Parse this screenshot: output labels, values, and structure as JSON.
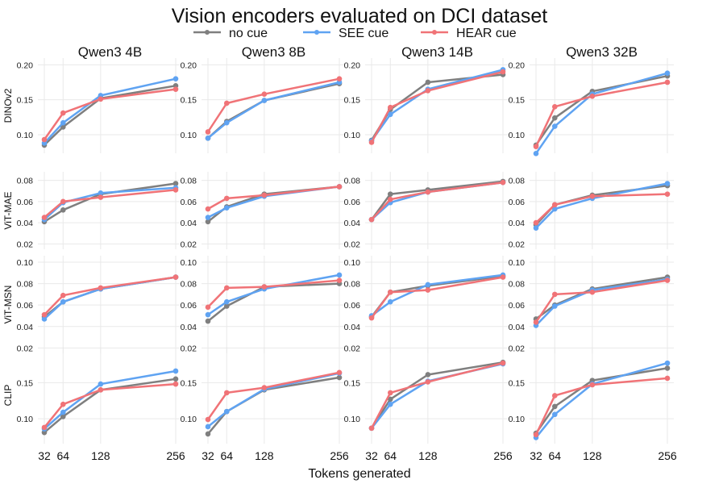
{
  "chart_data": {
    "type": "line",
    "title": "Vision encoders evaluated on DCI dataset",
    "xlabel": "Tokens generated",
    "x": [
      32,
      64,
      128,
      256
    ],
    "x_tick_labels": [
      "32",
      "64",
      "128",
      "256"
    ],
    "legend": [
      {
        "name": "no cue",
        "color": "#7f7f7f"
      },
      {
        "name": "SEE cue",
        "color": "#5fa3f2"
      },
      {
        "name": "HEAR cue",
        "color": "#f07377"
      }
    ],
    "columns": [
      "Qwen3 4B",
      "Qwen3 8B",
      "Qwen3 14B",
      "Qwen3 32B"
    ],
    "rows": [
      {
        "label": "DINOv2",
        "ylim": [
          0.078,
          0.205
        ],
        "yticks": [
          0.1,
          0.15,
          0.2
        ],
        "ytick_labels": [
          "0.10",
          "0.15",
          "0.20"
        ]
      },
      {
        "label": "ViT-MAE",
        "ylim": [
          0.018,
          0.085
        ],
        "yticks": [
          0.02,
          0.04,
          0.06,
          0.08
        ],
        "ytick_labels": [
          "0.02",
          "0.04",
          "0.06",
          "0.08"
        ]
      },
      {
        "label": "ViT-MSN",
        "ylim": [
          0.018,
          0.103
        ],
        "yticks": [
          0.02,
          0.04,
          0.06,
          0.08,
          0.1
        ],
        "ytick_labels": [
          "0.02",
          "0.04",
          "0.06",
          "0.08",
          "0.10"
        ]
      },
      {
        "label": "CLIP",
        "ylim": [
          0.07,
          0.195
        ],
        "yticks": [
          0.1,
          0.15
        ],
        "ytick_labels": [
          "0.10",
          "0.15"
        ]
      }
    ],
    "panels": [
      [
        {
          "series": [
            {
              "name": "no cue",
              "values": [
                0.085,
                0.111,
                0.152,
                0.17
              ]
            },
            {
              "name": "SEE cue",
              "values": [
                0.088,
                0.117,
                0.156,
                0.18
              ]
            },
            {
              "name": "HEAR cue",
              "values": [
                0.093,
                0.131,
                0.151,
                0.165
              ]
            }
          ]
        },
        {
          "series": [
            {
              "name": "no cue",
              "values": [
                0.095,
                0.119,
                0.149,
                0.173
              ]
            },
            {
              "name": "SEE cue",
              "values": [
                0.095,
                0.117,
                0.149,
                0.175
              ]
            },
            {
              "name": "HEAR cue",
              "values": [
                0.104,
                0.145,
                0.158,
                0.18
              ]
            }
          ]
        },
        {
          "series": [
            {
              "name": "no cue",
              "values": [
                0.092,
                0.136,
                0.175,
                0.186
              ]
            },
            {
              "name": "SEE cue",
              "values": [
                0.091,
                0.129,
                0.165,
                0.193
              ]
            },
            {
              "name": "HEAR cue",
              "values": [
                0.089,
                0.139,
                0.163,
                0.19
              ]
            }
          ]
        },
        {
          "series": [
            {
              "name": "no cue",
              "values": [
                0.085,
                0.124,
                0.162,
                0.184
              ]
            },
            {
              "name": "SEE cue",
              "values": [
                0.073,
                0.112,
                0.158,
                0.188
              ]
            },
            {
              "name": "HEAR cue",
              "values": [
                0.083,
                0.14,
                0.155,
                0.175
              ]
            }
          ]
        }
      ],
      [
        {
          "series": [
            {
              "name": "no cue",
              "values": [
                0.041,
                0.052,
                0.067,
                0.077
              ]
            },
            {
              "name": "SEE cue",
              "values": [
                0.043,
                0.059,
                0.068,
                0.073
              ]
            },
            {
              "name": "HEAR cue",
              "values": [
                0.045,
                0.06,
                0.064,
                0.071
              ]
            }
          ]
        },
        {
          "series": [
            {
              "name": "no cue",
              "values": [
                0.041,
                0.055,
                0.067,
                0.074
              ]
            },
            {
              "name": "SEE cue",
              "values": [
                0.045,
                0.054,
                0.065,
                0.074
              ]
            },
            {
              "name": "HEAR cue",
              "values": [
                0.053,
                0.063,
                0.066,
                0.074
              ]
            }
          ]
        },
        {
          "series": [
            {
              "name": "no cue",
              "values": [
                0.043,
                0.067,
                0.071,
                0.079
              ]
            },
            {
              "name": "SEE cue",
              "values": [
                0.043,
                0.059,
                0.069,
                0.078
              ]
            },
            {
              "name": "HEAR cue",
              "values": [
                0.043,
                0.062,
                0.069,
                0.078
              ]
            }
          ]
        },
        {
          "series": [
            {
              "name": "no cue",
              "values": [
                0.038,
                0.057,
                0.066,
                0.075
              ]
            },
            {
              "name": "SEE cue",
              "values": [
                0.035,
                0.053,
                0.063,
                0.077
              ]
            },
            {
              "name": "HEAR cue",
              "values": [
                0.04,
                0.057,
                0.065,
                0.067
              ]
            }
          ]
        }
      ],
      [
        {
          "series": [
            {
              "name": "no cue",
              "values": [
                0.049,
                0.063,
                0.075,
                0.086
              ]
            },
            {
              "name": "SEE cue",
              "values": [
                0.047,
                0.063,
                0.075,
                0.086
              ]
            },
            {
              "name": "HEAR cue",
              "values": [
                0.051,
                0.069,
                0.076,
                0.086
              ]
            }
          ]
        },
        {
          "series": [
            {
              "name": "no cue",
              "values": [
                0.045,
                0.059,
                0.077,
                0.08
              ]
            },
            {
              "name": "SEE cue",
              "values": [
                0.051,
                0.063,
                0.075,
                0.088
              ]
            },
            {
              "name": "HEAR cue",
              "values": [
                0.058,
                0.076,
                0.077,
                0.083
              ]
            }
          ]
        },
        {
          "series": [
            {
              "name": "no cue",
              "values": [
                0.049,
                0.072,
                0.078,
                0.087
              ]
            },
            {
              "name": "SEE cue",
              "values": [
                0.05,
                0.063,
                0.079,
                0.088
              ]
            },
            {
              "name": "HEAR cue",
              "values": [
                0.048,
                0.072,
                0.074,
                0.086
              ]
            }
          ]
        },
        {
          "series": [
            {
              "name": "no cue",
              "values": [
                0.047,
                0.06,
                0.075,
                0.086
              ]
            },
            {
              "name": "SEE cue",
              "values": [
                0.041,
                0.059,
                0.074,
                0.084
              ]
            },
            {
              "name": "HEAR cue",
              "values": [
                0.044,
                0.07,
                0.072,
                0.083
              ]
            }
          ]
        }
      ],
      [
        {
          "series": [
            {
              "name": "no cue",
              "values": [
                0.081,
                0.103,
                0.14,
                0.155
              ]
            },
            {
              "name": "SEE cue",
              "values": [
                0.086,
                0.109,
                0.148,
                0.166
              ]
            },
            {
              "name": "HEAR cue",
              "values": [
                0.088,
                0.12,
                0.14,
                0.148
              ]
            }
          ]
        },
        {
          "series": [
            {
              "name": "no cue",
              "values": [
                0.079,
                0.11,
                0.14,
                0.157
              ]
            },
            {
              "name": "SEE cue",
              "values": [
                0.089,
                0.11,
                0.141,
                0.163
              ]
            },
            {
              "name": "HEAR cue",
              "values": [
                0.099,
                0.136,
                0.143,
                0.164
              ]
            }
          ]
        },
        {
          "series": [
            {
              "name": "no cue",
              "values": [
                0.087,
                0.127,
                0.161,
                0.178
              ]
            },
            {
              "name": "SEE cue",
              "values": [
                0.087,
                0.12,
                0.152,
                0.176
              ]
            },
            {
              "name": "HEAR cue",
              "values": [
                0.087,
                0.136,
                0.151,
                0.177
              ]
            }
          ]
        },
        {
          "series": [
            {
              "name": "no cue",
              "values": [
                0.08,
                0.117,
                0.153,
                0.17
              ]
            },
            {
              "name": "SEE cue",
              "values": [
                0.074,
                0.106,
                0.148,
                0.177
              ]
            },
            {
              "name": "HEAR cue",
              "values": [
                0.078,
                0.132,
                0.147,
                0.156
              ]
            }
          ]
        }
      ]
    ]
  }
}
